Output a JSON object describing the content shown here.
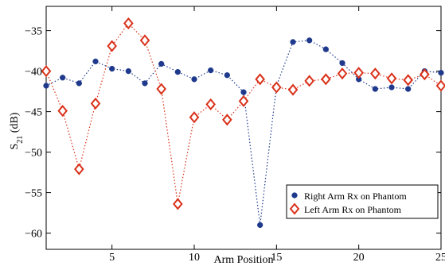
{
  "chart_data": {
    "type": "scatter",
    "title": "",
    "xlabel": "Arm Position",
    "ylabel_main": "S",
    "ylabel_sub": "21",
    "ylabel_unit": " (dB)",
    "xlim": [
      1,
      25
    ],
    "ylim": [
      -62,
      -32
    ],
    "xticks": [
      5,
      10,
      15,
      20,
      25
    ],
    "yticks": [
      -60,
      -55,
      -50,
      -45,
      -40,
      -35
    ],
    "grid": false,
    "legend_position": "lower-right",
    "series": [
      {
        "name": "Right Arm Rx on Phantom",
        "color": "#1f3a8c",
        "marker": "filled-circle",
        "line": "dotted",
        "x": [
          1,
          2,
          3,
          4,
          5,
          6,
          7,
          8,
          9,
          10,
          11,
          12,
          13,
          14,
          15,
          16,
          17,
          18,
          19,
          20,
          21,
          22,
          23,
          24,
          25
        ],
        "y": [
          -41.8,
          -40.8,
          -41.5,
          -38.8,
          -39.7,
          -40.0,
          -41.5,
          -39.1,
          -40.1,
          -41.0,
          -39.9,
          -40.5,
          -42.6,
          -59.0,
          -41.8,
          -36.4,
          -36.2,
          -37.3,
          -39.0,
          -41.0,
          -42.2,
          -42.0,
          -42.2,
          -40.0,
          -40.2
        ]
      },
      {
        "name": "Left Arm Rx on Phantom",
        "color": "#d9311a",
        "marker": "open-diamond",
        "line": "dotted",
        "x": [
          1,
          2,
          3,
          4,
          5,
          6,
          7,
          8,
          9,
          10,
          11,
          12,
          13,
          14,
          15,
          16,
          17,
          18,
          19,
          20,
          21,
          22,
          23,
          24,
          25
        ],
        "y": [
          -40.0,
          -44.9,
          -52.1,
          -44.0,
          -36.9,
          -34.1,
          -36.2,
          -42.2,
          -56.4,
          -45.7,
          -44.1,
          -46.0,
          -43.7,
          -41.0,
          -42.0,
          -42.3,
          -41.2,
          -41.0,
          -40.3,
          -40.2,
          -40.3,
          -40.9,
          -41.1,
          -40.4,
          -41.8
        ]
      }
    ]
  }
}
